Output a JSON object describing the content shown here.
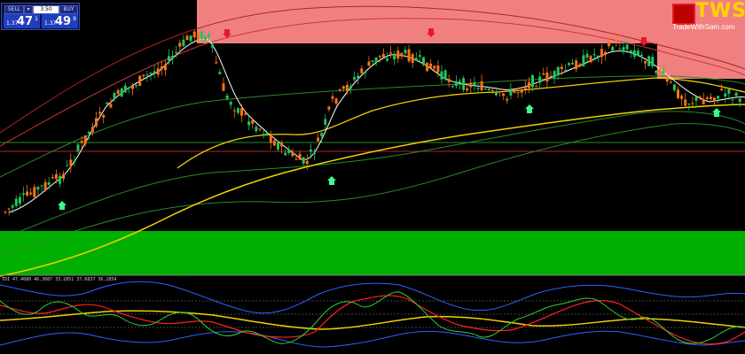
{
  "trade_panel": {
    "sell_label": "SELL",
    "lot_size": "3.50",
    "buy_label": "BUY",
    "sell_price": {
      "prefix": "1.37",
      "big": "47",
      "sup": "1"
    },
    "buy_price": {
      "prefix": "1.37",
      "big": "49",
      "sup": "9"
    }
  },
  "brand": {
    "name": "TWS",
    "site": "TradeWithSam.com"
  },
  "indicator": {
    "label": "TDI 47.4680 46.3087 33.2851 37.6837 36.2854"
  },
  "colors": {
    "supply_zone": "#f08080",
    "demand_zone": "#00b000",
    "bull_candle": "#22c55e",
    "bear_candle": "#f97316",
    "ma_yellow": "#f5d000",
    "ma_white": "#ffffff",
    "band_green": "#2a8a2a",
    "band_red": "#b22222",
    "rsi_red": "#ff2020",
    "rsi_green": "#30d030",
    "bb_blue": "#3060ff"
  },
  "icons": [
    "down-arrow-icon",
    "up-arrow-icon"
  ]
}
